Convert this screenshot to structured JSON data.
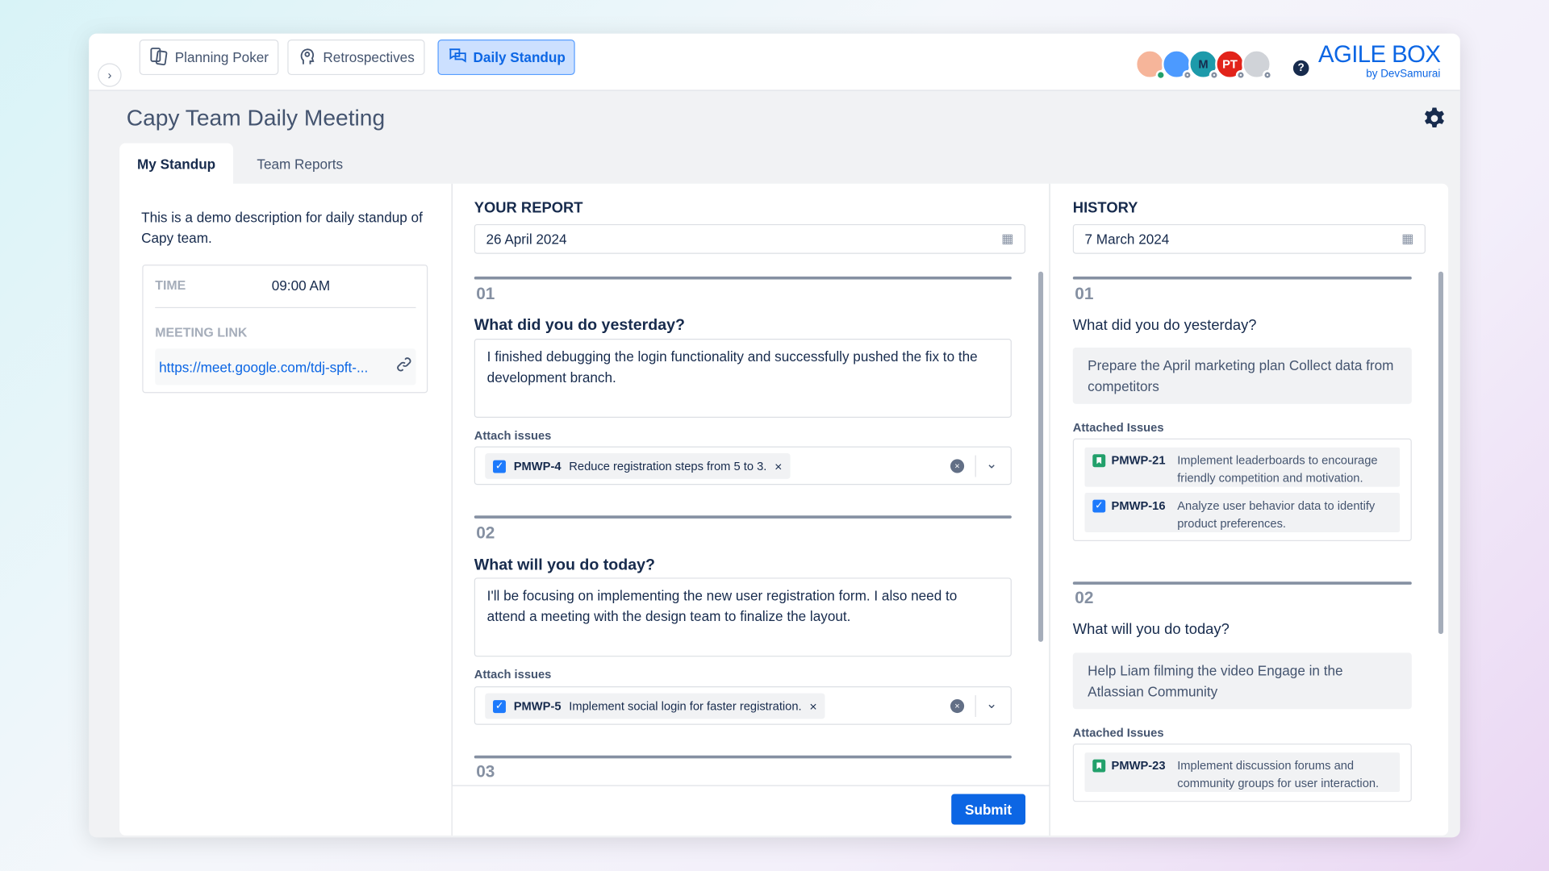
{
  "nav": {
    "items": [
      {
        "label": "Planning Poker",
        "icon": "cards-icon"
      },
      {
        "label": "Retrospectives",
        "icon": "head-icon"
      },
      {
        "label": "Daily Standup",
        "icon": "chat-icon",
        "active": true
      }
    ]
  },
  "header": {
    "avatars": [
      "avatar-1",
      "avatar-2",
      "M",
      "PT",
      "avatar-5"
    ],
    "help": "?",
    "brand": "AGILE BOX",
    "brand_sub": "by DevSamurai",
    "brand_color": "#0c66e4"
  },
  "page": {
    "title": "Capy Team Daily Meeting",
    "tabs": [
      "My Standup",
      "Team Reports"
    ]
  },
  "info": {
    "description": "This is a demo description for daily standup of Capy team.",
    "time_label": "TIME",
    "time_value": "09:00 AM",
    "link_label": "MEETING LINK",
    "link_value": "https://meet.google.com/tdj-spft-..."
  },
  "report": {
    "title": "YOUR REPORT",
    "date": "26 April 2024",
    "attach_label": "Attach issues",
    "submit": "Submit",
    "sections": [
      {
        "num": "01",
        "question": "What did you do yesterday?",
        "answer": "I finished debugging the login functionality and successfully pushed the fix to the development branch.",
        "issue_key": "PMWP-4",
        "issue_summary": "Reduce registration steps from 5 to 3."
      },
      {
        "num": "02",
        "question": "What will you do today?",
        "answer": "I'll be focusing on implementing the new user registration form. I also need to attend a meeting with the design team to finalize the layout.",
        "issue_key": "PMWP-5",
        "issue_summary": "Implement social login for faster registration."
      },
      {
        "num": "03"
      }
    ]
  },
  "history": {
    "title": "HISTORY",
    "date": "7 March 2024",
    "attached_label": "Attached Issues",
    "sections": [
      {
        "num": "01",
        "question": "What did you do yesterday?",
        "answer": "Prepare the April marketing plan Collect data from competitors",
        "issues": [
          {
            "key": "PMWP-21",
            "summary": "Implement leaderboards to encourage friendly competition and motivation.",
            "type": "story"
          },
          {
            "key": "PMWP-16",
            "summary": "Analyze user behavior data to identify product preferences.",
            "type": "task"
          }
        ]
      },
      {
        "num": "02",
        "question": "What will you do today?",
        "answer": "Help Liam filming the video Engage in the Atlassian Community",
        "issues": [
          {
            "key": "PMWP-23",
            "summary": "Implement discussion forums and community groups for user interaction.",
            "type": "story"
          }
        ]
      }
    ]
  }
}
